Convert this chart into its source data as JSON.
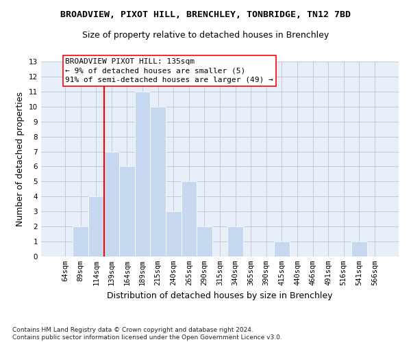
{
  "title": "BROADVIEW, PIXOT HILL, BRENCHLEY, TONBRIDGE, TN12 7BD",
  "subtitle": "Size of property relative to detached houses in Brenchley",
  "xlabel": "Distribution of detached houses by size in Brenchley",
  "ylabel": "Number of detached properties",
  "categories": [
    "64sqm",
    "89sqm",
    "114sqm",
    "139sqm",
    "164sqm",
    "189sqm",
    "215sqm",
    "240sqm",
    "265sqm",
    "290sqm",
    "315sqm",
    "340sqm",
    "365sqm",
    "390sqm",
    "415sqm",
    "440sqm",
    "466sqm",
    "491sqm",
    "516sqm",
    "541sqm",
    "566sqm"
  ],
  "values": [
    0,
    2,
    4,
    7,
    6,
    11,
    10,
    3,
    5,
    2,
    0,
    2,
    0,
    0,
    1,
    0,
    0,
    0,
    0,
    1,
    0
  ],
  "bar_color": "#c5d8f0",
  "bar_edge_color": "#ffffff",
  "grid_color": "#c0c8e0",
  "vline_x": 2.5,
  "vline_color": "red",
  "annotation_text": "BROADVIEW PIXOT HILL: 135sqm\n← 9% of detached houses are smaller (5)\n91% of semi-detached houses are larger (49) →",
  "annotation_box_color": "white",
  "annotation_box_edge_color": "red",
  "ylim": [
    0,
    13
  ],
  "yticks": [
    0,
    1,
    2,
    3,
    4,
    5,
    6,
    7,
    8,
    9,
    10,
    11,
    12,
    13
  ],
  "footer": "Contains HM Land Registry data © Crown copyright and database right 2024.\nContains public sector information licensed under the Open Government Licence v3.0.",
  "title_fontsize": 9.5,
  "subtitle_fontsize": 9,
  "xlabel_fontsize": 9,
  "ylabel_fontsize": 9,
  "footer_fontsize": 6.5,
  "annotation_fontsize": 8,
  "tick_fontsize": 7.5,
  "axes_facecolor": "#e8eef8",
  "fig_facecolor": "#ffffff"
}
